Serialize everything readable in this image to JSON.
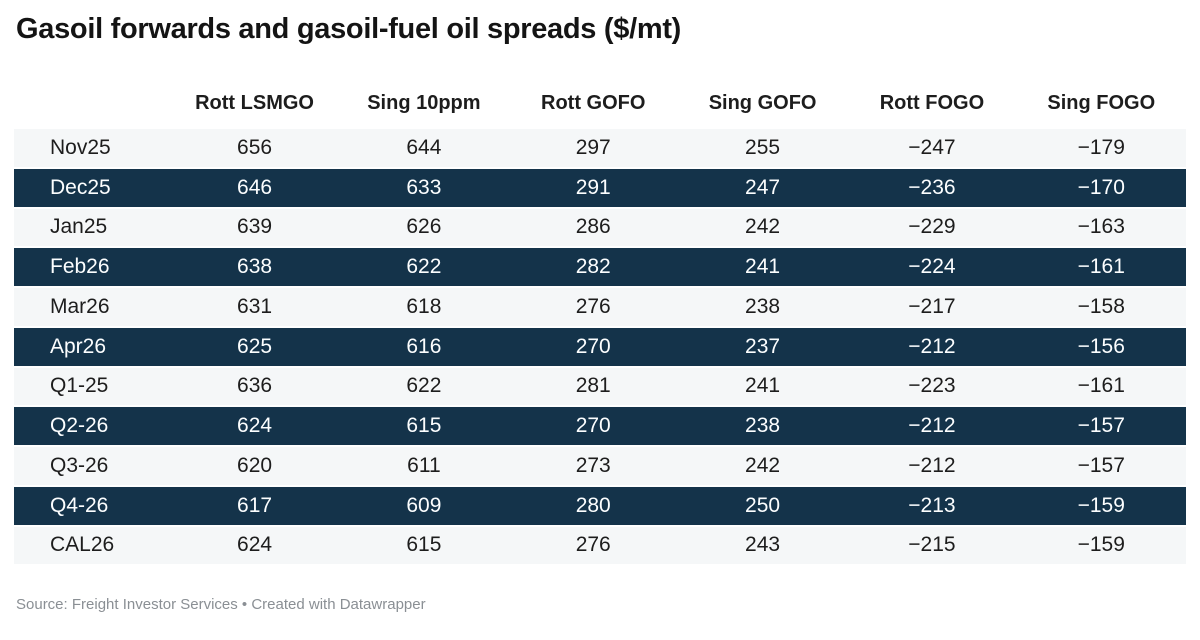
{
  "title": "Gasoil forwards and gasoil-fuel oil spreads ($/mt)",
  "table": {
    "corner_label": "",
    "columns": [
      "Rott LSMGO",
      "Sing 10ppm",
      "Rott GOFO",
      "Sing GOFO",
      "Rott FOGO",
      "Sing FOGO"
    ],
    "rows": [
      {
        "label": "Nov25",
        "values": [
          "656",
          "644",
          "297",
          "255",
          "−247",
          "−179"
        ]
      },
      {
        "label": "Dec25",
        "values": [
          "646",
          "633",
          "291",
          "247",
          "−236",
          "−170"
        ]
      },
      {
        "label": "Jan25",
        "values": [
          "639",
          "626",
          "286",
          "242",
          "−229",
          "−163"
        ]
      },
      {
        "label": "Feb26",
        "values": [
          "638",
          "622",
          "282",
          "241",
          "−224",
          "−161"
        ]
      },
      {
        "label": "Mar26",
        "values": [
          "631",
          "618",
          "276",
          "238",
          "−217",
          "−158"
        ]
      },
      {
        "label": "Apr26",
        "values": [
          "625",
          "616",
          "270",
          "237",
          "−212",
          "−156"
        ]
      },
      {
        "label": "Q1-25",
        "values": [
          "636",
          "622",
          "281",
          "241",
          "−223",
          "−161"
        ]
      },
      {
        "label": "Q2-26",
        "values": [
          "624",
          "615",
          "270",
          "238",
          "−212",
          "−157"
        ]
      },
      {
        "label": "Q3-26",
        "values": [
          "620",
          "611",
          "273",
          "242",
          "−212",
          "−157"
        ]
      },
      {
        "label": "Q4-26",
        "values": [
          "617",
          "609",
          "280",
          "250",
          "−213",
          "−159"
        ]
      },
      {
        "label": "CAL26",
        "values": [
          "624",
          "615",
          "276",
          "243",
          "−215",
          "−159"
        ]
      }
    ]
  },
  "footer": {
    "text": "Source: Freight Investor Services • Created with Datawrapper"
  },
  "colors": {
    "dark_row_bg": "#14334a",
    "dark_row_text": "#fcfeff",
    "light_row_bg": "#f5f7f8",
    "light_row_text": "#1d1d1d",
    "title_text": "#141414",
    "footer_text": "#8a8f94"
  },
  "chart_data": {
    "type": "table",
    "title": "Gasoil forwards and gasoil-fuel oil spreads ($/mt)",
    "categories": [
      "Nov25",
      "Dec25",
      "Jan25",
      "Feb26",
      "Mar26",
      "Apr26",
      "Q1-25",
      "Q2-26",
      "Q3-26",
      "Q4-26",
      "CAL26"
    ],
    "series": [
      {
        "name": "Rott LSMGO",
        "values": [
          656,
          646,
          639,
          638,
          631,
          625,
          636,
          624,
          620,
          617,
          624
        ]
      },
      {
        "name": "Sing 10ppm",
        "values": [
          644,
          633,
          626,
          622,
          618,
          616,
          622,
          615,
          611,
          609,
          615
        ]
      },
      {
        "name": "Rott GOFO",
        "values": [
          297,
          291,
          286,
          282,
          276,
          270,
          281,
          270,
          273,
          280,
          276
        ]
      },
      {
        "name": "Sing GOFO",
        "values": [
          255,
          247,
          242,
          241,
          238,
          237,
          241,
          238,
          242,
          250,
          243
        ]
      },
      {
        "name": "Rott FOGO",
        "values": [
          -247,
          -236,
          -229,
          -224,
          -217,
          -212,
          -223,
          -212,
          -212,
          -213,
          -215
        ]
      },
      {
        "name": "Sing FOGO",
        "values": [
          -179,
          -170,
          -163,
          -161,
          -158,
          -156,
          -161,
          -157,
          -157,
          -159,
          -159
        ]
      }
    ],
    "source": "Source: Freight Investor Services • Created with Datawrapper",
    "layout": {
      "striped_rows": true,
      "stripe_style": "odd-rows-dark-navy",
      "numeric_alignment": "center",
      "grid": false,
      "legend_position": "none"
    }
  }
}
